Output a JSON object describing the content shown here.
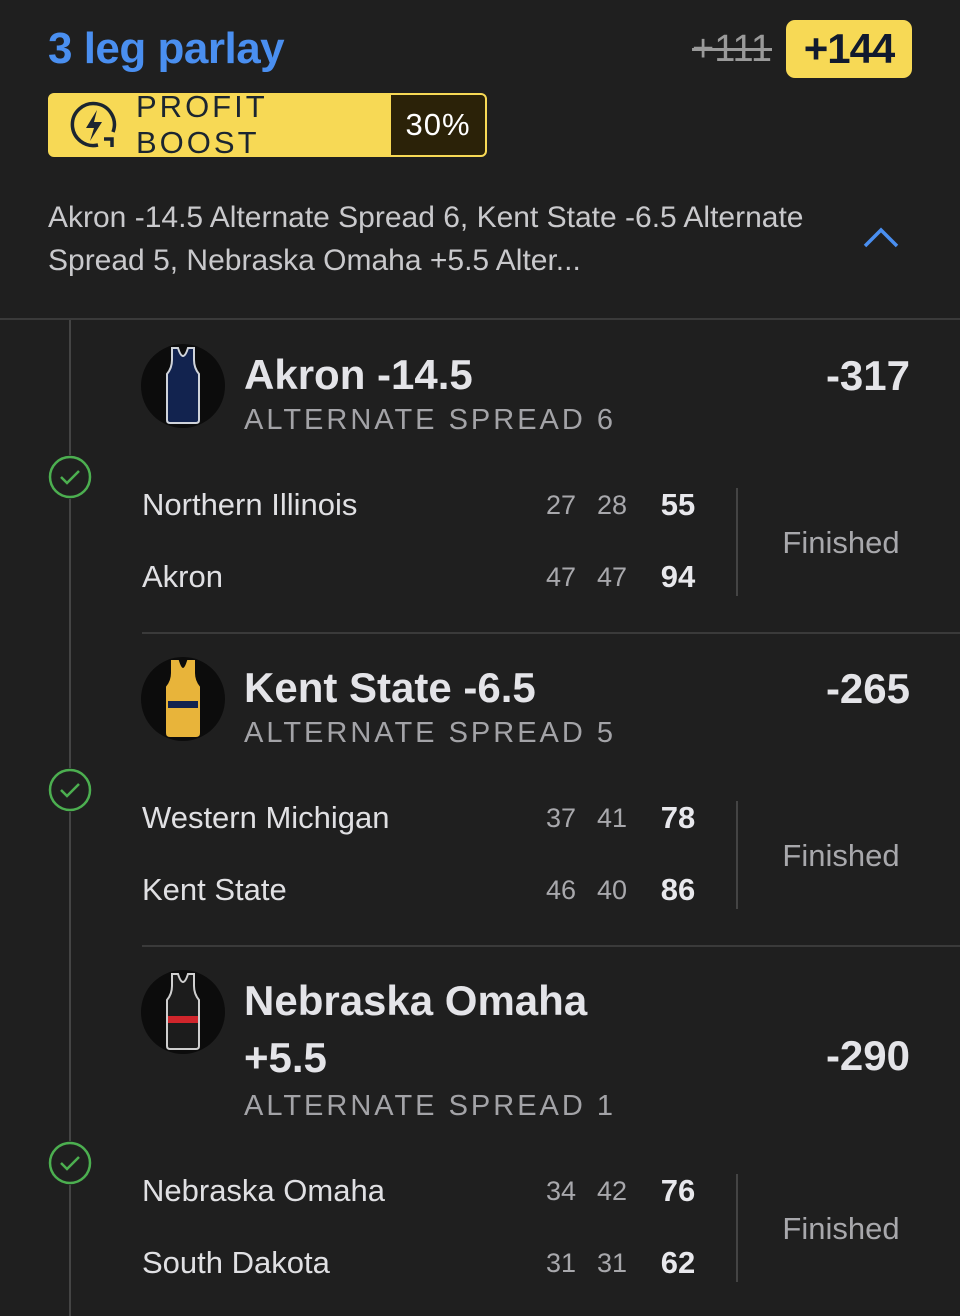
{
  "header": {
    "title": "3 leg parlay",
    "original_odds": "+111",
    "boosted_odds": "+144",
    "boost_label": "PROFIT BOOST",
    "boost_percent": "30%",
    "description": "Akron -14.5 Alternate Spread 6, Kent State -6.5 Alternate Spread 5, Nebraska Omaha +5.5 Alter...",
    "expand_icon": "chevron-up-icon"
  },
  "colors": {
    "accent": "#4a8ff0",
    "boost": "#f7d955",
    "success": "#4caf50",
    "background": "#1f1f1f"
  },
  "legs": [
    {
      "title": "Akron -14.5",
      "market": "ALTERNATE SPREAD 6",
      "odds": "-317",
      "jersey": {
        "body": "#12234f",
        "trim": "#cfd3da",
        "stripe": ""
      },
      "teams": [
        {
          "name": "Northern Illinois",
          "q1": "27",
          "q2": "28",
          "total": "55"
        },
        {
          "name": "Akron",
          "q1": "47",
          "q2": "47",
          "total": "94"
        }
      ],
      "status": "Finished"
    },
    {
      "title": "Kent State -6.5",
      "market": "ALTERNATE SPREAD 5",
      "odds": "-265",
      "jersey": {
        "body": "#e8b43a",
        "trim": "#e8b43a",
        "stripe": "#12234f"
      },
      "teams": [
        {
          "name": "Western Michigan",
          "q1": "37",
          "q2": "41",
          "total": "78"
        },
        {
          "name": "Kent State",
          "q1": "46",
          "q2": "40",
          "total": "86"
        }
      ],
      "status": "Finished"
    },
    {
      "title": "Nebraska Omaha +5.5",
      "market": "ALTERNATE SPREAD 1",
      "odds": "-290",
      "jersey": {
        "body": "#1c1c1c",
        "trim": "#cfcfcf",
        "stripe": "#d0252b"
      },
      "teams": [
        {
          "name": "Nebraska Omaha",
          "q1": "34",
          "q2": "42",
          "total": "76"
        },
        {
          "name": "South Dakota",
          "q1": "31",
          "q2": "31",
          "total": "62"
        }
      ],
      "status": "Finished"
    }
  ]
}
